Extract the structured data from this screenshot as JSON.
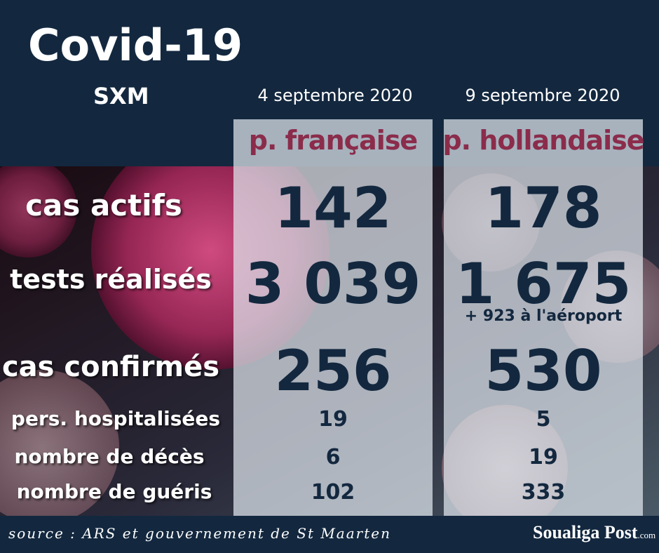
{
  "header": {
    "title": "Covid-19",
    "subtitle": "SXM"
  },
  "columns": [
    {
      "date": "4 septembre 2020",
      "label": "p. française"
    },
    {
      "date": "9 septembre 2020",
      "label": "p. hollandaise"
    }
  ],
  "rows": [
    {
      "label": "cas actifs",
      "values": [
        "142",
        "178"
      ]
    },
    {
      "label": "tests réalisés",
      "values": [
        "3 039",
        "1 675"
      ],
      "note": "+ 923 à l'aéroport"
    },
    {
      "label": "cas confirmés",
      "values": [
        "256",
        "530"
      ]
    },
    {
      "label": "pers. hospitalisées",
      "values": [
        "19",
        "5"
      ]
    },
    {
      "label": "nombre de décès",
      "values": [
        "6",
        "19"
      ]
    },
    {
      "label": "nombre de guéris",
      "values": [
        "102",
        "333"
      ]
    }
  ],
  "footer": {
    "source": "source : ARS et gouvernement de St Maarten",
    "brand": "Soualiga Post",
    "brand_suffix": ".com"
  }
}
